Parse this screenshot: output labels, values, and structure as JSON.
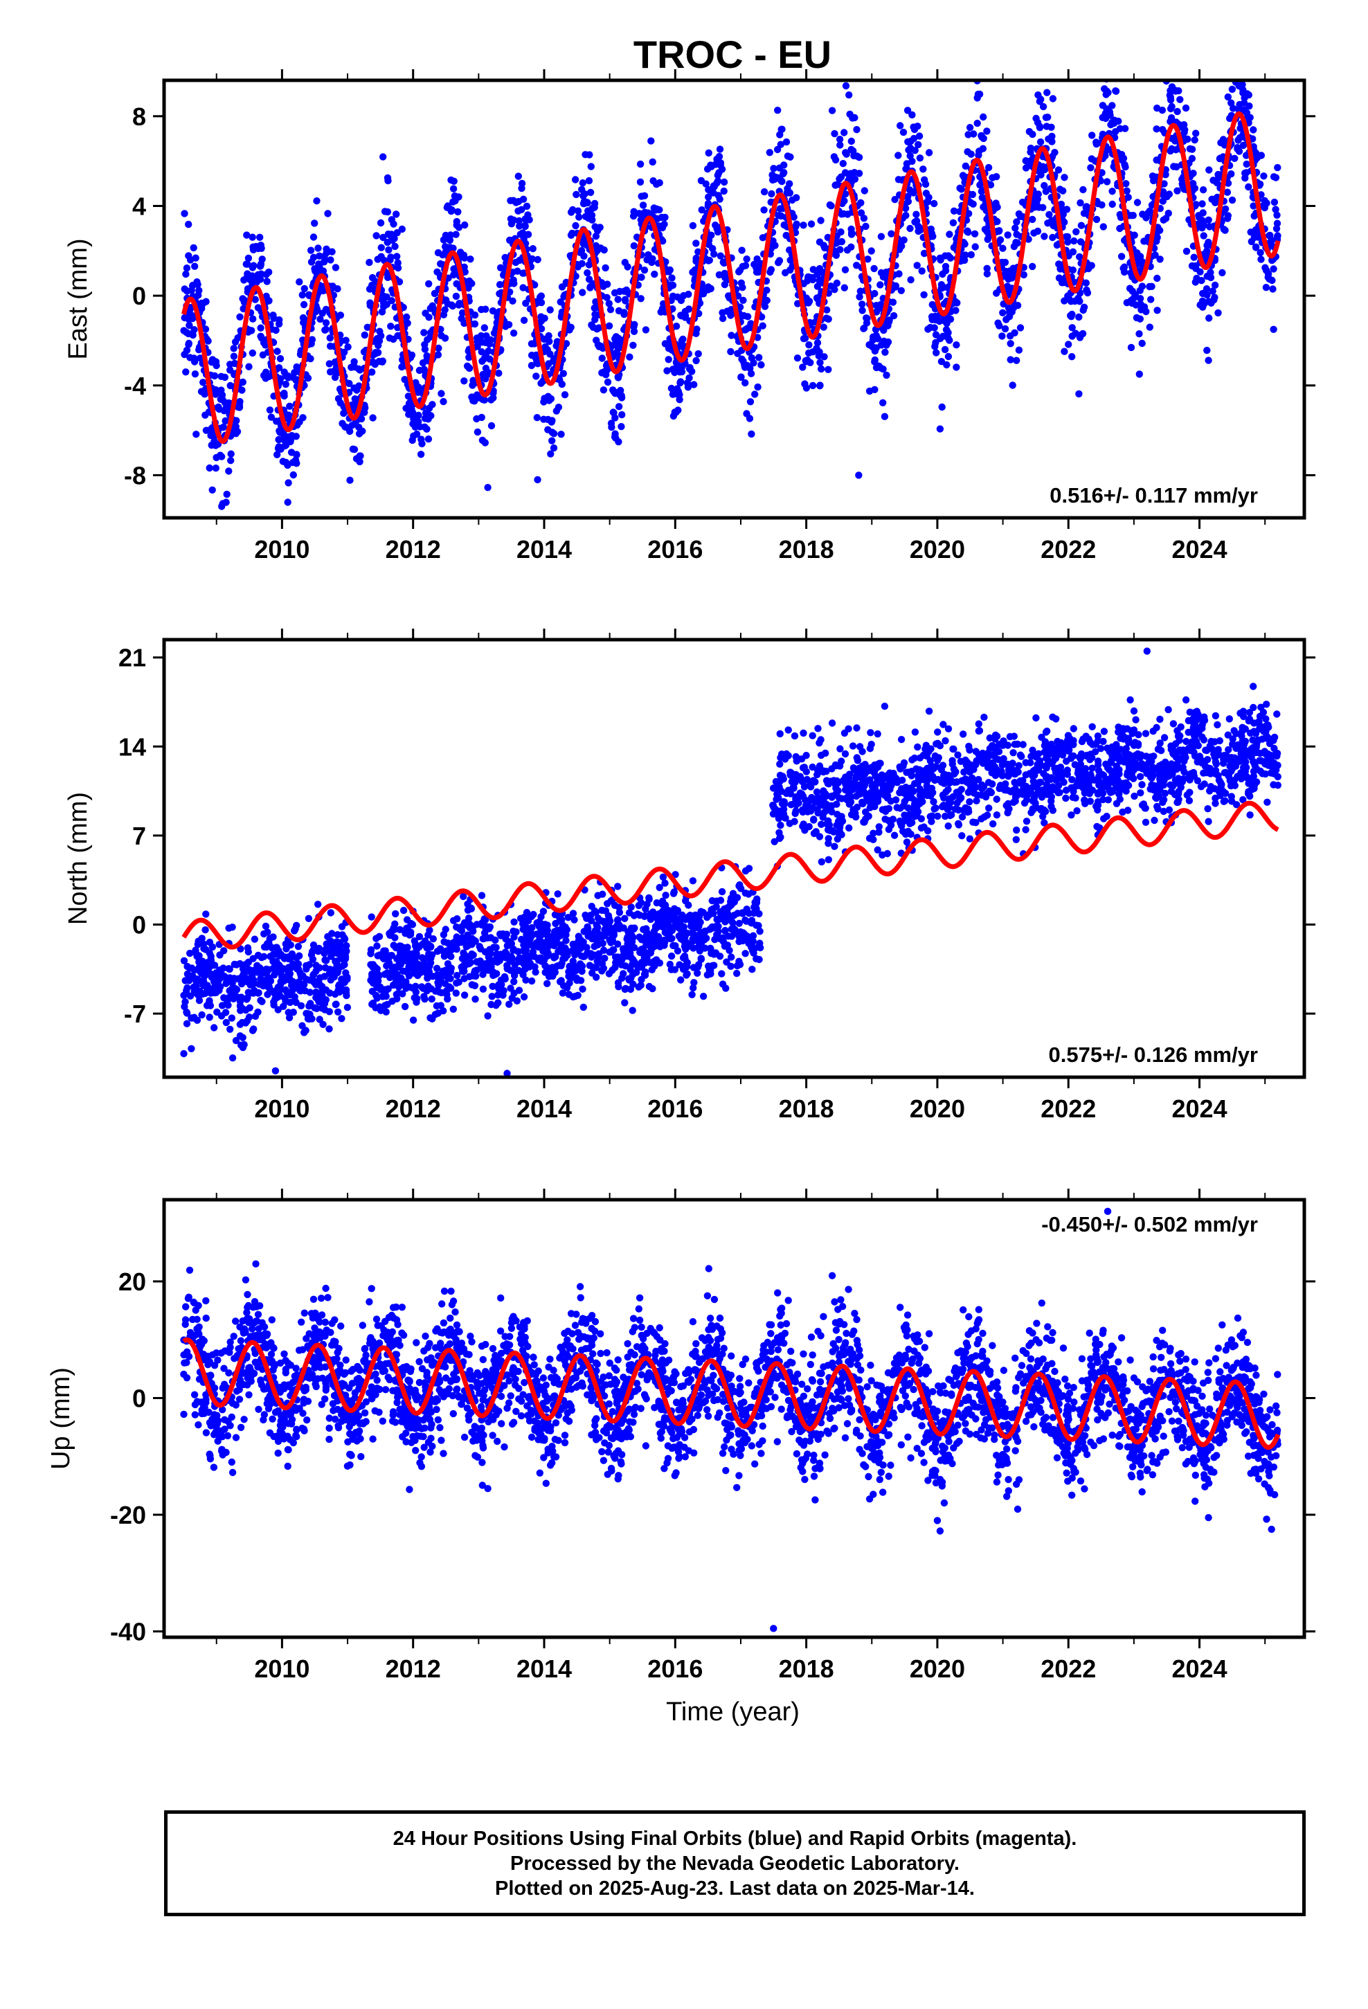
{
  "title": "TROC - EU",
  "chart_data": [
    {
      "type": "scatter",
      "ylabel": "East (mm)",
      "xlabel": "",
      "rate_label": "0.516+/- 0.117 mm/yr",
      "xlim": [
        2008.2,
        2025.6
      ],
      "ylim": [
        -9.9,
        9.6
      ],
      "x_ticks": [
        "2010",
        "2012",
        "2014",
        "2016",
        "2018",
        "2020",
        "2022",
        "2024"
      ],
      "y_ticks": [
        "8",
        "4",
        "0",
        "-4",
        "-8"
      ],
      "scatter_color": "#0000ff",
      "fit_color": "#ff0000",
      "data_range": [
        2008.5,
        2025.2
      ],
      "series": [
        {
          "x": [
            2008.5,
            2008.8,
            2009.0,
            2009.3,
            2009.5,
            2009.8,
            2010.0,
            2010.3,
            2010.5,
            2010.8,
            2011.0,
            2011.3,
            2011.5,
            2011.8,
            2012.0,
            2012.3,
            2012.5,
            2012.8,
            2013.0,
            2013.3,
            2013.5,
            2013.8,
            2014.0,
            2014.3,
            2014.5,
            2014.8,
            2015.0,
            2015.3,
            2015.5,
            2015.8,
            2016.0,
            2016.3,
            2016.5,
            2016.8,
            2017.0,
            2017.3,
            2017.5,
            2017.8,
            2018.0,
            2018.3,
            2018.5,
            2018.8,
            2019.0,
            2019.3,
            2019.5,
            2019.8,
            2020.0,
            2020.3,
            2020.5,
            2020.8,
            2021.0,
            2021.3,
            2021.5,
            2021.8,
            2022.0,
            2022.3,
            2022.5,
            2022.8,
            2023.0,
            2023.3,
            2023.5,
            2023.8,
            2024.0,
            2024.3,
            2024.5,
            2024.8,
            2025.0,
            2025.2
          ],
          "y": [
            -3.0,
            -7.0,
            -5.5,
            -1.0,
            -1.5,
            -6.0,
            -5.5,
            -0.5,
            -0.5,
            -5.5,
            -5.0,
            0.5,
            -0.5,
            -5.5,
            -4.5,
            1.0,
            0.0,
            -4.5,
            -3.5,
            1.5,
            0.5,
            -4.0,
            -3.0,
            2.0,
            1.0,
            -3.5,
            -2.5,
            2.5,
            1.5,
            -3.0,
            -2.0,
            3.0,
            2.0,
            -2.5,
            -1.5,
            3.5,
            2.5,
            -2.0,
            -1.0,
            4.0,
            3.0,
            -1.5,
            -0.5,
            4.5,
            3.5,
            -1.0,
            0.0,
            5.0,
            4.0,
            -0.5,
            0.5,
            5.5,
            4.5,
            0.0,
            1.0,
            6.0,
            5.0,
            0.5,
            1.5,
            6.5,
            5.5,
            1.0,
            2.0,
            7.0,
            6.0,
            1.5,
            2.5,
            5.0
          ]
        }
      ],
      "model": {
        "offset": -3.5,
        "rate": 0.516,
        "amplitude": 3.3,
        "phase_year": 2008.6,
        "t0": 2008.5,
        "offset_step_at": 2008.5,
        "offset_step": 0.0
      },
      "scatter_spread": 1.6
    },
    {
      "type": "scatter",
      "ylabel": "North (mm)",
      "xlabel": "",
      "rate_label": "0.575+/- 0.126 mm/yr",
      "xlim": [
        2008.2,
        2025.6
      ],
      "ylim": [
        -12.0,
        22.4
      ],
      "x_ticks": [
        "2010",
        "2012",
        "2014",
        "2016",
        "2018",
        "2020",
        "2022",
        "2024"
      ],
      "y_ticks": [
        "21",
        "14",
        "7",
        "0",
        "-7"
      ],
      "scatter_color": "#0000ff",
      "fit_color": "#ff0000",
      "data_range": [
        2008.5,
        2025.2
      ],
      "series": [
        {
          "x": [
            2008.5,
            2010.0,
            2012.0,
            2014.0,
            2016.0,
            2017.4,
            2017.5,
            2018.0,
            2020.0,
            2022.0,
            2024.0,
            2025.2
          ],
          "y": [
            -5.0,
            -4.5,
            -3.5,
            -2.5,
            -1.5,
            -0.5,
            10.0,
            10.0,
            10.5,
            12.0,
            13.5,
            14.0
          ]
        }
      ],
      "fit": {
        "x": [
          2008.5,
          2025.2
        ],
        "y": [
          -1.0,
          8.6
        ]
      },
      "model": {
        "offset": -1.0,
        "rate": 0.575,
        "amplitude": 1.2,
        "phase_year": 2008.75,
        "t0": 2008.5,
        "offset_step_at": 2017.45,
        "offset_step": 10.8
      },
      "scatter_spread": 1.8
    },
    {
      "type": "scatter",
      "ylabel": "Up (mm)",
      "xlabel": "Time (year)",
      "rate_label": "-0.450+/- 0.502 mm/yr",
      "xlim": [
        2008.2,
        2025.6
      ],
      "ylim": [
        -41.0,
        34.0
      ],
      "x_ticks": [
        "2010",
        "2012",
        "2014",
        "2016",
        "2018",
        "2020",
        "2022",
        "2024"
      ],
      "y_ticks": [
        "20",
        "0",
        "-20",
        "-40"
      ],
      "scatter_color": "#0000ff",
      "fit_color": "#ff0000",
      "data_range": [
        2008.5,
        2025.2
      ],
      "series": [
        {
          "x": [
            2008.5,
            2009.6,
            2010.1,
            2010.6,
            2011.1,
            2011.6,
            2012.1,
            2012.6,
            2013.1,
            2013.6,
            2014.1,
            2014.6,
            2015.1,
            2015.6,
            2016.1,
            2016.6,
            2017.1,
            2017.6,
            2018.1,
            2018.6,
            2019.1,
            2019.6,
            2020.1,
            2020.6,
            2021.1,
            2021.6,
            2022.1,
            2022.6,
            2023.1,
            2023.6,
            2024.1,
            2024.6,
            2025.2
          ],
          "y": [
            10.0,
            10.0,
            -1.5,
            9.5,
            -2.0,
            9.0,
            -2.5,
            8.5,
            -3.0,
            8.0,
            -3.0,
            7.5,
            -3.5,
            7.0,
            -4.0,
            7.0,
            -4.5,
            6.5,
            -5.0,
            6.0,
            -5.5,
            5.5,
            -5.5,
            5.0,
            -6.0,
            5.0,
            -6.5,
            4.5,
            -7.0,
            4.0,
            -7.5,
            3.5,
            -8.0
          ]
        }
      ],
      "model": {
        "offset": 4.5,
        "rate": -0.45,
        "amplitude": 5.5,
        "phase_year": 2008.55,
        "t0": 2008.5,
        "offset_step_at": 2008.5,
        "offset_step": 0.0
      },
      "scatter_spread": 5.0
    }
  ],
  "footer": {
    "lines": [
      "24 Hour Positions Using Final Orbits (blue) and Rapid Orbits (magenta).",
      "Processed by the Nevada Geodetic Laboratory.",
      "Plotted on 2025-Aug-23. Last data on 2025-Mar-14."
    ]
  }
}
